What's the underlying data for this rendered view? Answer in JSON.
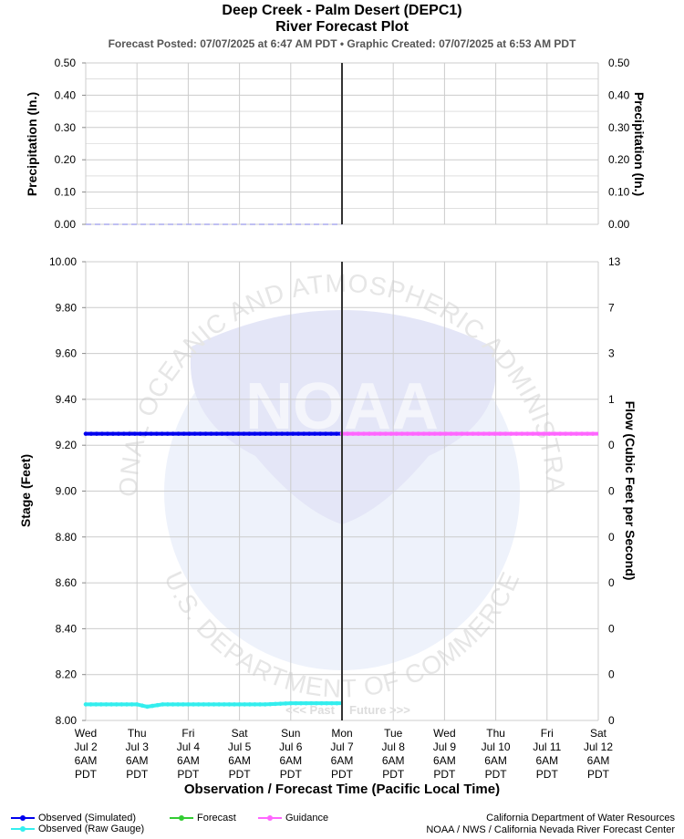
{
  "header": {
    "title": "Deep Creek - Palm Desert (DEPC1)",
    "subtitle": "River Forecast Plot",
    "info": "Forecast Posted: 07/07/2025 at 6:47 AM PDT  •  Graphic Created: 07/07/2025 at 6:53 AM PDT"
  },
  "colors": {
    "observed_simulated": "#0000ee",
    "observed_raw": "#33eeee",
    "forecast": "#33cc33",
    "guidance": "#ff66ff",
    "precip": "#aaaaee",
    "divider": "#333333",
    "grid": "#cccccc"
  },
  "chart_data": [
    {
      "type": "line",
      "panel": "precipitation",
      "ylabel": "Precipitation (In.)",
      "ylabel_right": "Precipitation (In.)",
      "ylim": [
        0,
        0.5
      ],
      "yticks": [
        "0.00",
        "0.10",
        "0.20",
        "0.30",
        "0.40",
        "0.50"
      ],
      "grid": true,
      "series": [
        {
          "values_description": "",
          "x": [
            0,
            5
          ],
          "y": [
            0.0,
            0.0
          ]
        }
      ]
    },
    {
      "type": "line",
      "panel": "stage",
      "ylabel": "Stage (Feet)",
      "ylabel_right": "Flow (Cubic Feet per Second)",
      "ylim": [
        8.0,
        10.0
      ],
      "yticks": [
        "8.00",
        "8.20",
        "8.40",
        "8.60",
        "8.80",
        "9.00",
        "9.20",
        "9.40",
        "9.60",
        "9.80",
        "10.00"
      ],
      "yticks_right": [
        "0",
        "0",
        "0",
        "0",
        "0",
        "0",
        "0",
        "1",
        "3",
        "7",
        "13"
      ],
      "grid": true,
      "x_labels": [
        [
          "Wed",
          "Jul 2",
          "6AM",
          "PDT"
        ],
        [
          "Thu",
          "Jul 3",
          "6AM",
          "PDT"
        ],
        [
          "Fri",
          "Jul 4",
          "6AM",
          "PDT"
        ],
        [
          "Sat",
          "Jul 5",
          "6AM",
          "PDT"
        ],
        [
          "Sun",
          "Jul 6",
          "6AM",
          "PDT"
        ],
        [
          "Mon",
          "Jul 7",
          "6AM",
          "PDT"
        ],
        [
          "Tue",
          "Jul 8",
          "6AM",
          "PDT"
        ],
        [
          "Wed",
          "Jul 9",
          "6AM",
          "PDT"
        ],
        [
          "Thu",
          "Jul 10",
          "6AM",
          "PDT"
        ],
        [
          "Fri",
          "Jul 11",
          "6AM",
          "PDT"
        ],
        [
          "Sat",
          "Jul 12",
          "6AM",
          "PDT"
        ]
      ],
      "xlabel": "Observation / Forecast Time (Pacific Local Time)",
      "divider_x": 5,
      "past_label": "<<< Past",
      "future_label": "Future >>>",
      "series": [
        {
          "name": "Observed (Simulated)",
          "x": [
            0,
            5
          ],
          "y": [
            9.25,
            9.25
          ]
        },
        {
          "name": "Guidance",
          "x": [
            5,
            10
          ],
          "y": [
            9.25,
            9.25
          ]
        },
        {
          "name": "Observed (Raw Gauge)",
          "x": [
            0,
            0.5,
            1,
            1.2,
            1.5,
            2,
            2.5,
            3,
            3.5,
            4,
            4.5,
            5
          ],
          "y": [
            8.07,
            8.07,
            8.07,
            8.06,
            8.07,
            8.07,
            8.07,
            8.07,
            8.07,
            8.075,
            8.075,
            8.075
          ]
        }
      ]
    }
  ],
  "legend": {
    "observed_simulated": "Observed (Simulated)",
    "observed_raw": "Observed (Raw Gauge)",
    "forecast": "Forecast",
    "guidance": "Guidance"
  },
  "credits": {
    "line1": "California Department of Water Resources",
    "line2": "NOAA / NWS / California Nevada River Forecast Center"
  },
  "watermark": {
    "text": "NOAA",
    "ring_top": "NATIONAL OCEANIC AND ATMOSPHERIC ADMINISTRATION",
    "ring_bottom": "U.S. DEPARTMENT OF COMMERCE"
  }
}
